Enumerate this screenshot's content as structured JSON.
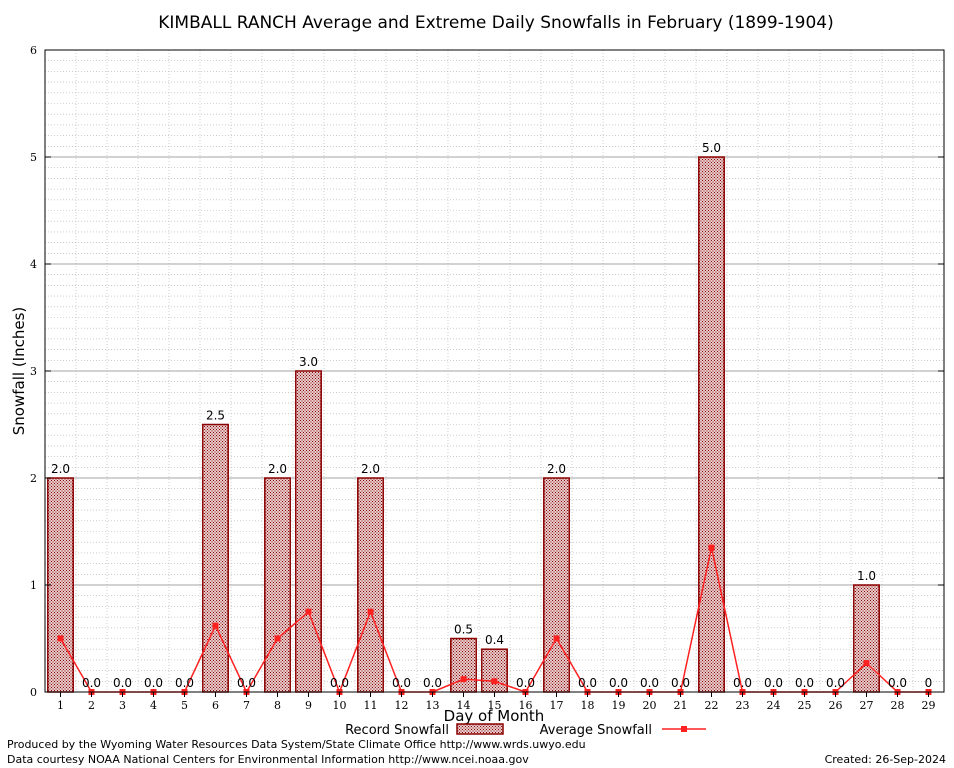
{
  "chart_data": {
    "type": "bar",
    "title": "KIMBALL RANCH Average and Extreme Daily Snowfalls in February (1899-1904)",
    "xlabel": "Day of Month",
    "ylabel": "Snowfall (Inches)",
    "ylim": [
      0,
      6
    ],
    "yticks": [
      "0",
      "1",
      "2",
      "3",
      "4",
      "5",
      "6"
    ],
    "categories": [
      "1",
      "2",
      "3",
      "4",
      "5",
      "6",
      "7",
      "8",
      "9",
      "10",
      "11",
      "12",
      "13",
      "14",
      "15",
      "16",
      "17",
      "18",
      "19",
      "20",
      "21",
      "22",
      "23",
      "24",
      "25",
      "26",
      "27",
      "28",
      "29"
    ],
    "series": [
      {
        "name": "Record Snowfall",
        "kind": "bar",
        "values": [
          2.0,
          0.0,
          0.0,
          0.0,
          0.0,
          2.5,
          0.0,
          2.0,
          3.0,
          0.0,
          2.0,
          0.0,
          0.0,
          0.5,
          0.4,
          0.0,
          2.0,
          0.0,
          0.0,
          0.0,
          0.0,
          5.0,
          0.0,
          0.0,
          0.0,
          0.0,
          1.0,
          0.0,
          0
        ],
        "labels": [
          "2.0",
          "0.0",
          "0.0",
          "0.0",
          "0.0",
          "2.5",
          "0.0",
          "2.0",
          "3.0",
          "0.0",
          "2.0",
          "0.0",
          "0.0",
          "0.5",
          "0.4",
          "0.0",
          "2.0",
          "0.0",
          "0.0",
          "0.0",
          "0.0",
          "5.0",
          "0.0",
          "0.0",
          "0.0",
          "0.0",
          "1.0",
          "0.0",
          "0"
        ]
      },
      {
        "name": "Average Snowfall",
        "kind": "line",
        "values": [
          0.5,
          0,
          0,
          0,
          0,
          0.62,
          0,
          0.5,
          0.75,
          0,
          0.75,
          0,
          0,
          0.12,
          0.1,
          0,
          0.5,
          0,
          0,
          0,
          0,
          1.35,
          0,
          0,
          0,
          0,
          0.27,
          0,
          0
        ]
      }
    ],
    "grid": true,
    "legend_position": "bottom-center",
    "colors": {
      "bar_edge": "#8b0000",
      "bar_fill": "#c89a9a",
      "line": "#ff2020",
      "grid": "#999999"
    }
  },
  "footer": {
    "produced_by": "Produced by the Wyoming Water Resources Data System/State Climate Office http://www.wrds.uwyo.edu",
    "courtesy": "Data courtesy NOAA National Centers for Environmental Information http://www.ncei.noaa.gov",
    "created": "Created:  26-Sep-2024"
  }
}
